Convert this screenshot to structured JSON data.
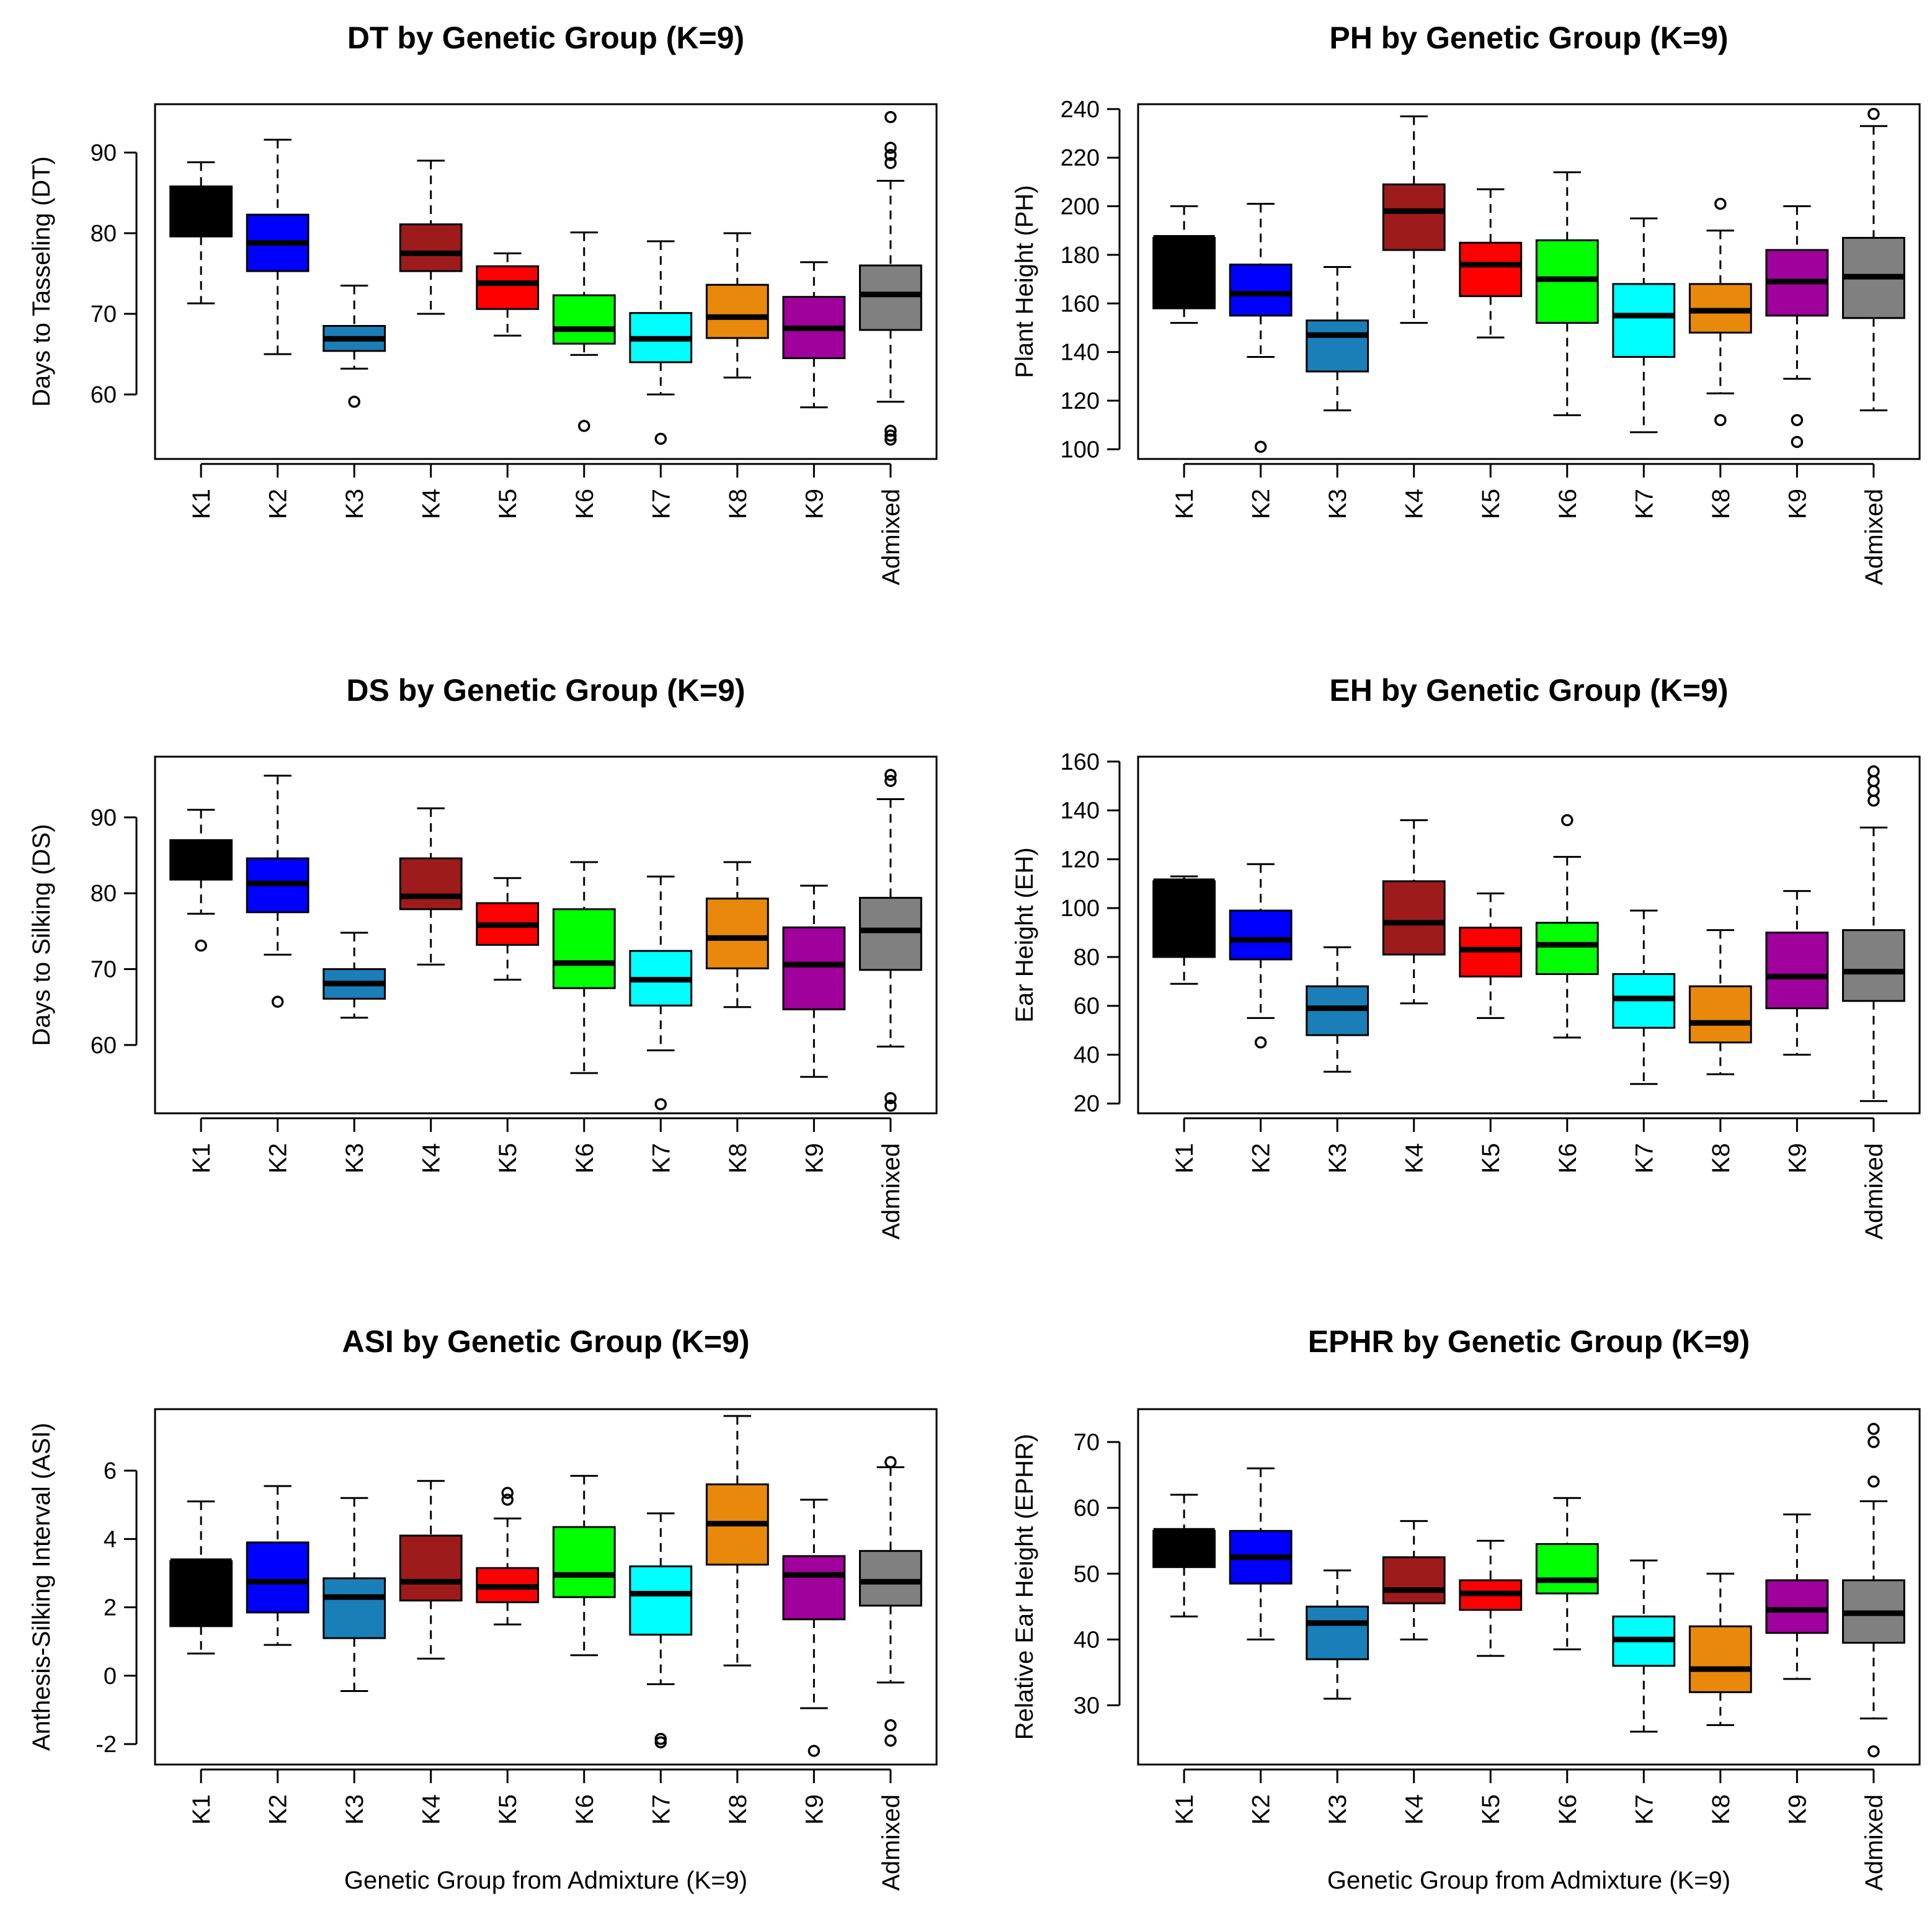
{
  "figure_colors": {
    "K1": "#000000",
    "K2": "#0000FF",
    "K3": "#1A7FB8",
    "K4": "#9E1B1B",
    "K5": "#FF0000",
    "K6": "#00FF00",
    "K7": "#00FFFF",
    "K8": "#E8890C",
    "K9": "#A0009C",
    "Admixed": "#808080"
  },
  "chart_data": [
    {
      "type": "boxplot",
      "title": "DT by Genetic Group (K=9)",
      "ylabel": "Days to Tasseling (DT)",
      "xlabel": "",
      "ylim": [
        52,
        96
      ],
      "yticks": [
        60,
        70,
        80,
        90
      ],
      "categories": [
        "K1",
        "K2",
        "K3",
        "K4",
        "K5",
        "K6",
        "K7",
        "K8",
        "K9",
        "Admixed"
      ],
      "boxes": [
        {
          "group": "K1",
          "whisker_low": 71.3,
          "q1": 79.6,
          "median": 81.6,
          "q3": 85.8,
          "whisker_high": 88.8,
          "outliers": []
        },
        {
          "group": "K2",
          "whisker_low": 65.0,
          "q1": 75.3,
          "median": 78.8,
          "q3": 82.3,
          "whisker_high": 91.6,
          "outliers": []
        },
        {
          "group": "K3",
          "whisker_low": 63.2,
          "q1": 65.4,
          "median": 66.9,
          "q3": 68.5,
          "whisker_high": 73.5,
          "outliers": [
            59.1
          ]
        },
        {
          "group": "K4",
          "whisker_low": 70.0,
          "q1": 75.3,
          "median": 77.5,
          "q3": 81.1,
          "whisker_high": 89.0,
          "outliers": []
        },
        {
          "group": "K5",
          "whisker_low": 67.3,
          "q1": 70.6,
          "median": 73.8,
          "q3": 75.9,
          "whisker_high": 77.5,
          "outliers": []
        },
        {
          "group": "K6",
          "whisker_low": 64.9,
          "q1": 66.3,
          "median": 68.1,
          "q3": 72.3,
          "whisker_high": 80.1,
          "outliers": [
            56.1
          ]
        },
        {
          "group": "K7",
          "whisker_low": 60.0,
          "q1": 64.0,
          "median": 66.9,
          "q3": 70.1,
          "whisker_high": 79.0,
          "outliers": [
            54.5
          ]
        },
        {
          "group": "K8",
          "whisker_low": 62.1,
          "q1": 67.0,
          "median": 69.6,
          "q3": 73.6,
          "whisker_high": 80.0,
          "outliers": []
        },
        {
          "group": "K9",
          "whisker_low": 58.4,
          "q1": 64.5,
          "median": 68.2,
          "q3": 72.1,
          "whisker_high": 76.4,
          "outliers": []
        },
        {
          "group": "Admixed",
          "whisker_low": 59.1,
          "q1": 68.0,
          "median": 72.4,
          "q3": 76.0,
          "whisker_high": 86.5,
          "outliers": [
            94.4,
            90.6,
            89.7,
            88.7,
            55.5,
            54.9,
            54.4
          ]
        }
      ]
    },
    {
      "type": "boxplot",
      "title": "PH by Genetic Group (K=9)",
      "ylabel": "Plant Height (PH)",
      "xlabel": "",
      "ylim": [
        96,
        242
      ],
      "yticks": [
        100,
        120,
        140,
        160,
        180,
        200,
        220,
        240
      ],
      "categories": [
        "K1",
        "K2",
        "K3",
        "K4",
        "K5",
        "K6",
        "K7",
        "K8",
        "K9",
        "Admixed"
      ],
      "boxes": [
        {
          "group": "K1",
          "whisker_low": 152,
          "q1": 158,
          "median": 187,
          "q3": 187,
          "whisker_high": 200,
          "outliers": []
        },
        {
          "group": "K2",
          "whisker_low": 138,
          "q1": 155,
          "median": 164,
          "q3": 176,
          "whisker_high": 201,
          "outliers": [
            101
          ]
        },
        {
          "group": "K3",
          "whisker_low": 116,
          "q1": 132,
          "median": 147,
          "q3": 153,
          "whisker_high": 175,
          "outliers": []
        },
        {
          "group": "K4",
          "whisker_low": 152,
          "q1": 182,
          "median": 198,
          "q3": 209,
          "whisker_high": 237,
          "outliers": []
        },
        {
          "group": "K5",
          "whisker_low": 146,
          "q1": 163,
          "median": 176,
          "q3": 185,
          "whisker_high": 207,
          "outliers": []
        },
        {
          "group": "K6",
          "whisker_low": 114,
          "q1": 152,
          "median": 170,
          "q3": 186,
          "whisker_high": 214,
          "outliers": []
        },
        {
          "group": "K7",
          "whisker_low": 107,
          "q1": 138,
          "median": 155,
          "q3": 168,
          "whisker_high": 195,
          "outliers": []
        },
        {
          "group": "K8",
          "whisker_low": 123,
          "q1": 148,
          "median": 157,
          "q3": 168,
          "whisker_high": 190,
          "outliers": [
            201,
            112
          ]
        },
        {
          "group": "K9",
          "whisker_low": 129,
          "q1": 155,
          "median": 169,
          "q3": 182,
          "whisker_high": 200,
          "outliers": [
            112,
            103
          ]
        },
        {
          "group": "Admixed",
          "whisker_low": 116,
          "q1": 154,
          "median": 171,
          "q3": 187,
          "whisker_high": 233,
          "outliers": [
            238
          ]
        }
      ]
    },
    {
      "type": "boxplot",
      "title": "DS by Genetic Group (K=9)",
      "ylabel": "Days to Silking (DS)",
      "xlabel": "",
      "ylim": [
        51,
        98
      ],
      "yticks": [
        60,
        70,
        80,
        90
      ],
      "categories": [
        "K1",
        "K2",
        "K3",
        "K4",
        "K5",
        "K6",
        "K7",
        "K8",
        "K9",
        "Admixed"
      ],
      "boxes": [
        {
          "group": "K1",
          "whisker_low": 77.3,
          "q1": 81.8,
          "median": 84.5,
          "q3": 87.0,
          "whisker_high": 91.0,
          "outliers": [
            73.1
          ]
        },
        {
          "group": "K2",
          "whisker_low": 71.9,
          "q1": 77.5,
          "median": 81.3,
          "q3": 84.6,
          "whisker_high": 95.5,
          "outliers": [
            65.7
          ]
        },
        {
          "group": "K3",
          "whisker_low": 63.6,
          "q1": 66.1,
          "median": 68.1,
          "q3": 70.0,
          "whisker_high": 74.8,
          "outliers": []
        },
        {
          "group": "K4",
          "whisker_low": 70.6,
          "q1": 77.9,
          "median": 79.6,
          "q3": 84.6,
          "whisker_high": 91.2,
          "outliers": []
        },
        {
          "group": "K5",
          "whisker_low": 68.6,
          "q1": 73.2,
          "median": 75.8,
          "q3": 78.7,
          "whisker_high": 82.0,
          "outliers": []
        },
        {
          "group": "K6",
          "whisker_low": 56.3,
          "q1": 67.5,
          "median": 70.8,
          "q3": 77.9,
          "whisker_high": 84.1,
          "outliers": []
        },
        {
          "group": "K7",
          "whisker_low": 59.3,
          "q1": 65.2,
          "median": 68.6,
          "q3": 72.4,
          "whisker_high": 82.2,
          "outliers": [
            52.2
          ]
        },
        {
          "group": "K8",
          "whisker_low": 65.0,
          "q1": 70.1,
          "median": 74.1,
          "q3": 79.3,
          "whisker_high": 84.1,
          "outliers": []
        },
        {
          "group": "K9",
          "whisker_low": 55.8,
          "q1": 64.7,
          "median": 70.6,
          "q3": 75.5,
          "whisker_high": 81.0,
          "outliers": []
        },
        {
          "group": "Admixed",
          "whisker_low": 59.8,
          "q1": 69.9,
          "median": 75.1,
          "q3": 79.4,
          "whisker_high": 92.4,
          "outliers": [
            95.6,
            94.8,
            53.0,
            52.0
          ]
        }
      ]
    },
    {
      "type": "boxplot",
      "title": "EH by Genetic Group (K=9)",
      "ylabel": "Ear Height (EH)",
      "xlabel": "",
      "ylim": [
        16,
        162
      ],
      "yticks": [
        20,
        40,
        60,
        80,
        100,
        120,
        140,
        160
      ],
      "categories": [
        "K1",
        "K2",
        "K3",
        "K4",
        "K5",
        "K6",
        "K7",
        "K8",
        "K9",
        "Admixed"
      ],
      "boxes": [
        {
          "group": "K1",
          "whisker_low": 69,
          "q1": 80,
          "median": 111,
          "q3": 111,
          "whisker_high": 113,
          "outliers": []
        },
        {
          "group": "K2",
          "whisker_low": 55,
          "q1": 79,
          "median": 87,
          "q3": 99,
          "whisker_high": 118,
          "outliers": [
            45
          ]
        },
        {
          "group": "K3",
          "whisker_low": 33,
          "q1": 48,
          "median": 59,
          "q3": 68,
          "whisker_high": 84,
          "outliers": []
        },
        {
          "group": "K4",
          "whisker_low": 61,
          "q1": 81,
          "median": 94,
          "q3": 111,
          "whisker_high": 136,
          "outliers": []
        },
        {
          "group": "K5",
          "whisker_low": 55,
          "q1": 72,
          "median": 83,
          "q3": 92,
          "whisker_high": 106,
          "outliers": []
        },
        {
          "group": "K6",
          "whisker_low": 47,
          "q1": 73,
          "median": 85,
          "q3": 94,
          "whisker_high": 121,
          "outliers": [
            136
          ]
        },
        {
          "group": "K7",
          "whisker_low": 28,
          "q1": 51,
          "median": 63,
          "q3": 73,
          "whisker_high": 99,
          "outliers": []
        },
        {
          "group": "K8",
          "whisker_low": 32,
          "q1": 45,
          "median": 53,
          "q3": 68,
          "whisker_high": 91,
          "outliers": []
        },
        {
          "group": "K9",
          "whisker_low": 40,
          "q1": 59,
          "median": 72,
          "q3": 90,
          "whisker_high": 107,
          "outliers": []
        },
        {
          "group": "Admixed",
          "whisker_low": 21,
          "q1": 62,
          "median": 74,
          "q3": 91,
          "whisker_high": 133,
          "outliers": [
            156,
            152,
            148,
            144
          ]
        }
      ]
    },
    {
      "type": "boxplot",
      "title": "ASI by Genetic Group (K=9)",
      "ylabel": "Anthesis-Silking Interval (ASI)",
      "xlabel": "Genetic Group from Admixture (K=9)",
      "ylim": [
        -2.6,
        7.8
      ],
      "yticks": [
        -2,
        0,
        2,
        4,
        6
      ],
      "categories": [
        "K1",
        "K2",
        "K3",
        "K4",
        "K5",
        "K6",
        "K7",
        "K8",
        "K9",
        "Admixed"
      ],
      "boxes": [
        {
          "group": "K1",
          "whisker_low": 0.65,
          "q1": 1.45,
          "median": 3.35,
          "q3": 3.35,
          "whisker_high": 5.1,
          "outliers": []
        },
        {
          "group": "K2",
          "whisker_low": 0.9,
          "q1": 1.85,
          "median": 2.75,
          "q3": 3.9,
          "whisker_high": 5.55,
          "outliers": []
        },
        {
          "group": "K3",
          "whisker_low": -0.45,
          "q1": 1.1,
          "median": 2.3,
          "q3": 2.85,
          "whisker_high": 5.2,
          "outliers": []
        },
        {
          "group": "K4",
          "whisker_low": 0.5,
          "q1": 2.2,
          "median": 2.75,
          "q3": 4.1,
          "whisker_high": 5.7,
          "outliers": []
        },
        {
          "group": "K5",
          "whisker_low": 1.5,
          "q1": 2.15,
          "median": 2.6,
          "q3": 3.15,
          "whisker_high": 4.6,
          "outliers": [
            5.35,
            5.15
          ]
        },
        {
          "group": "K6",
          "whisker_low": 0.6,
          "q1": 2.3,
          "median": 2.95,
          "q3": 4.35,
          "whisker_high": 5.85,
          "outliers": []
        },
        {
          "group": "K7",
          "whisker_low": -0.25,
          "q1": 1.2,
          "median": 2.4,
          "q3": 3.2,
          "whisker_high": 4.75,
          "outliers": [
            -1.85,
            -1.95
          ]
        },
        {
          "group": "K8",
          "whisker_low": 0.3,
          "q1": 3.25,
          "median": 4.45,
          "q3": 5.6,
          "whisker_high": 7.6,
          "outliers": []
        },
        {
          "group": "K9",
          "whisker_low": -0.95,
          "q1": 1.65,
          "median": 2.95,
          "q3": 3.5,
          "whisker_high": 5.15,
          "outliers": [
            -2.2
          ]
        },
        {
          "group": "Admixed",
          "whisker_low": -0.2,
          "q1": 2.05,
          "median": 2.75,
          "q3": 3.65,
          "whisker_high": 6.1,
          "outliers": [
            6.25,
            -1.45,
            -1.9
          ]
        }
      ]
    },
    {
      "type": "boxplot",
      "title": "EPHR by Genetic Group (K=9)",
      "ylabel": "Relative Ear Height (EPHR)",
      "xlabel": "Genetic Group from Admixture (K=9)",
      "ylim": [
        21,
        75
      ],
      "yticks": [
        30,
        40,
        50,
        60,
        70
      ],
      "categories": [
        "K1",
        "K2",
        "K3",
        "K4",
        "K5",
        "K6",
        "K7",
        "K8",
        "K9",
        "Admixed"
      ],
      "boxes": [
        {
          "group": "K1",
          "whisker_low": 43.5,
          "q1": 51.0,
          "median": 56.5,
          "q3": 56.5,
          "whisker_high": 62.0,
          "outliers": []
        },
        {
          "group": "K2",
          "whisker_low": 40.0,
          "q1": 48.5,
          "median": 52.5,
          "q3": 56.5,
          "whisker_high": 66.0,
          "outliers": []
        },
        {
          "group": "K3",
          "whisker_low": 31.0,
          "q1": 37.0,
          "median": 42.5,
          "q3": 45.0,
          "whisker_high": 50.5,
          "outliers": []
        },
        {
          "group": "K4",
          "whisker_low": 40.0,
          "q1": 45.5,
          "median": 47.5,
          "q3": 52.5,
          "whisker_high": 58.0,
          "outliers": []
        },
        {
          "group": "K5",
          "whisker_low": 37.5,
          "q1": 44.5,
          "median": 47.0,
          "q3": 49.0,
          "whisker_high": 55.0,
          "outliers": []
        },
        {
          "group": "K6",
          "whisker_low": 38.5,
          "q1": 47.0,
          "median": 49.0,
          "q3": 54.5,
          "whisker_high": 61.5,
          "outliers": []
        },
        {
          "group": "K7",
          "whisker_low": 26.0,
          "q1": 36.0,
          "median": 40.0,
          "q3": 43.5,
          "whisker_high": 52.0,
          "outliers": []
        },
        {
          "group": "K8",
          "whisker_low": 27.0,
          "q1": 32.0,
          "median": 35.5,
          "q3": 42.0,
          "whisker_high": 50.0,
          "outliers": []
        },
        {
          "group": "K9",
          "whisker_low": 34.0,
          "q1": 41.0,
          "median": 44.5,
          "q3": 49.0,
          "whisker_high": 59.0,
          "outliers": []
        },
        {
          "group": "Admixed",
          "whisker_low": 28.0,
          "q1": 39.5,
          "median": 44.0,
          "q3": 49.0,
          "whisker_high": 61.0,
          "outliers": [
            72.0,
            70.0,
            64.0,
            23.0
          ]
        }
      ]
    }
  ]
}
